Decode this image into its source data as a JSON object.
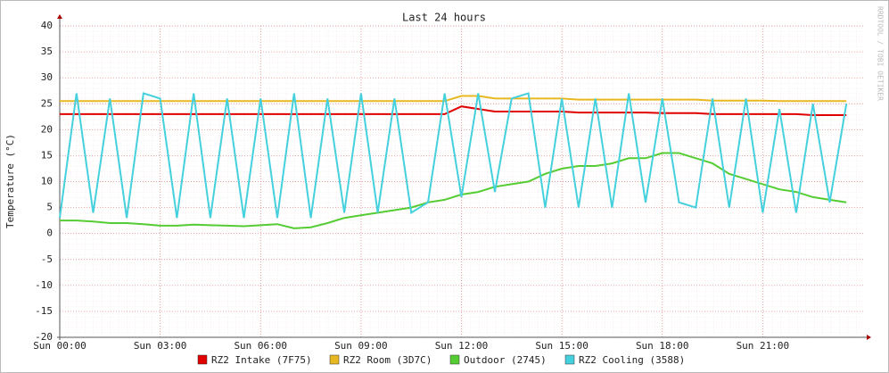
{
  "chart_data": {
    "type": "line",
    "title": "Last 24 hours",
    "y_label": "Temperature (°C)",
    "watermark": "RRDTOOL / TOBI OETIKER",
    "x": [
      0,
      0.5,
      1,
      1.5,
      2,
      2.5,
      3,
      3.5,
      4,
      4.5,
      5,
      5.5,
      6,
      6.5,
      7,
      7.5,
      8,
      8.5,
      9,
      9.5,
      10,
      10.5,
      11,
      11.5,
      12,
      12.5,
      13,
      13.5,
      14,
      14.5,
      15,
      15.5,
      16,
      16.5,
      17,
      17.5,
      18,
      18.5,
      19,
      19.5,
      20,
      20.5,
      21,
      21.5,
      22,
      22.5,
      23,
      23.5
    ],
    "series": [
      {
        "name": "RZ2 Intake (7F75)",
        "color": "#e00000",
        "values": [
          23,
          23,
          23,
          23,
          23,
          23,
          23,
          23,
          23,
          23,
          23,
          23,
          23,
          23,
          23,
          23,
          23,
          23,
          23,
          23,
          23,
          23,
          23,
          23,
          24.5,
          24,
          23.5,
          23.5,
          23.5,
          23.5,
          23.5,
          23.3,
          23.3,
          23.3,
          23.3,
          23.3,
          23.2,
          23.2,
          23.2,
          23,
          23,
          23,
          23,
          23,
          23,
          22.8,
          22.8,
          22.8
        ]
      },
      {
        "name": "RZ2 Room (3D7C)",
        "color": "#e8b820",
        "values": [
          25.5,
          25.5,
          25.5,
          25.5,
          25.5,
          25.5,
          25.5,
          25.5,
          25.5,
          25.5,
          25.5,
          25.5,
          25.5,
          25.5,
          25.5,
          25.5,
          25.5,
          25.5,
          25.5,
          25.5,
          25.5,
          25.5,
          25.5,
          25.5,
          26.5,
          26.5,
          26,
          26,
          26,
          26,
          26,
          25.8,
          25.8,
          25.8,
          25.8,
          25.8,
          25.8,
          25.8,
          25.8,
          25.6,
          25.6,
          25.6,
          25.6,
          25.5,
          25.5,
          25.5,
          25.5,
          25.5
        ]
      },
      {
        "name": "Outdoor (2745)",
        "color": "#55cc33",
        "values": [
          2.5,
          2.5,
          2.3,
          2,
          2,
          1.8,
          1.5,
          1.5,
          1.7,
          1.6,
          1.5,
          1.4,
          1.6,
          1.8,
          1,
          1.2,
          2,
          3,
          3.5,
          4,
          4.5,
          5,
          6,
          6.5,
          7.5,
          8,
          9,
          9.5,
          10,
          11.5,
          12.5,
          13,
          13,
          13.5,
          14.5,
          14.5,
          15.5,
          15.5,
          14.5,
          13.5,
          11.5,
          10.5,
          9.5,
          8.5,
          8,
          7,
          6.5,
          6
        ]
      },
      {
        "name": "RZ2 Cooling (3588)",
        "color": "#44d0dd",
        "values": [
          3,
          27,
          4,
          26,
          3,
          27,
          26,
          3,
          27,
          3,
          26,
          3,
          26,
          3,
          27,
          3,
          26,
          4,
          27,
          4,
          26,
          4,
          6,
          27,
          7,
          27,
          8,
          26,
          27,
          5,
          26,
          5,
          26,
          5,
          27,
          6,
          26,
          6,
          5,
          26,
          5,
          26,
          4,
          24,
          4,
          25,
          6,
          25
        ]
      }
    ],
    "xlim": [
      0,
      24
    ],
    "xticks": [
      {
        "value": 0,
        "label": "Sun 00:00"
      },
      {
        "value": 3,
        "label": "Sun 03:00"
      },
      {
        "value": 6,
        "label": "Sun 06:00"
      },
      {
        "value": 9,
        "label": "Sun 09:00"
      },
      {
        "value": 12,
        "label": "Sun 12:00"
      },
      {
        "value": 15,
        "label": "Sun 15:00"
      },
      {
        "value": 18,
        "label": "Sun 18:00"
      },
      {
        "value": 21,
        "label": "Sun 21:00"
      }
    ],
    "ylim": [
      -20,
      40
    ],
    "yticks": [
      -20,
      -15,
      -10,
      -5,
      0,
      5,
      10,
      15,
      20,
      25,
      30,
      35,
      40
    ],
    "grid": true
  }
}
